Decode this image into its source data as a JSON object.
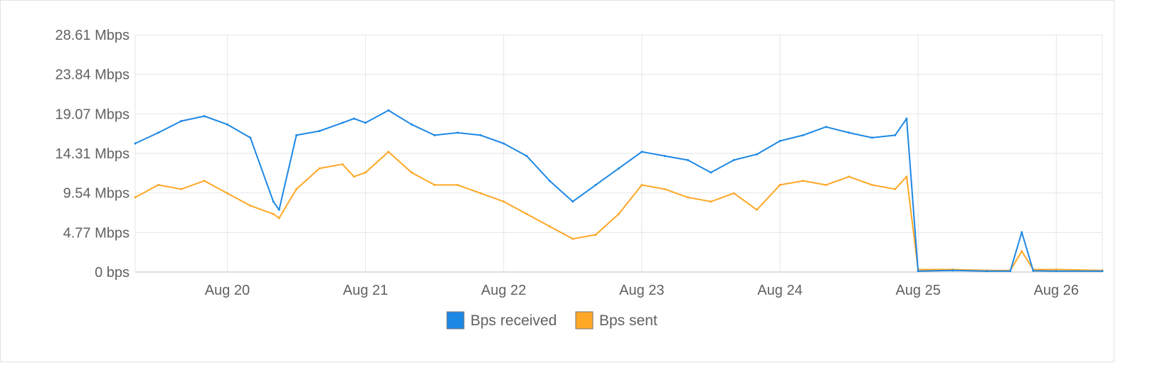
{
  "chart_data": {
    "type": "line",
    "title": "",
    "xlabel": "",
    "ylabel": "",
    "x_range": [
      "2023-08-19T08:00",
      "2023-08-26T08:00"
    ],
    "x_ticks": [
      "Aug 20",
      "Aug 21",
      "Aug 22",
      "Aug 23",
      "Aug 24",
      "Aug 25",
      "Aug 26"
    ],
    "y_ticks": [
      "0 bps",
      "4.77 Mbps",
      "9.54 Mbps",
      "14.31 Mbps",
      "19.07 Mbps",
      "23.84 Mbps",
      "28.61 Mbps"
    ],
    "y_unit": "Mbps",
    "ylim": [
      0,
      28.61
    ],
    "grid": true,
    "legend_position": "bottom",
    "series_colors": [
      "#1e88e5",
      "#ffa726"
    ],
    "series": [
      {
        "name": "Bps received",
        "x": [
          "2023-08-19T08:00",
          "2023-08-19T12:00",
          "2023-08-19T16:00",
          "2023-08-19T20:00",
          "2023-08-20T00:00",
          "2023-08-20T04:00",
          "2023-08-20T08:00",
          "2023-08-20T09:00",
          "2023-08-20T12:00",
          "2023-08-20T16:00",
          "2023-08-20T20:00",
          "2023-08-20T22:00",
          "2023-08-21T00:00",
          "2023-08-21T04:00",
          "2023-08-21T08:00",
          "2023-08-21T12:00",
          "2023-08-21T16:00",
          "2023-08-21T20:00",
          "2023-08-22T00:00",
          "2023-08-22T04:00",
          "2023-08-22T08:00",
          "2023-08-22T12:00",
          "2023-08-22T16:00",
          "2023-08-22T20:00",
          "2023-08-23T00:00",
          "2023-08-23T04:00",
          "2023-08-23T08:00",
          "2023-08-23T12:00",
          "2023-08-23T16:00",
          "2023-08-23T20:00",
          "2023-08-24T00:00",
          "2023-08-24T04:00",
          "2023-08-24T08:00",
          "2023-08-24T12:00",
          "2023-08-24T16:00",
          "2023-08-24T20:00",
          "2023-08-24T22:00",
          "2023-08-25T00:00",
          "2023-08-25T06:00",
          "2023-08-25T12:00",
          "2023-08-25T16:00",
          "2023-08-25T18:00",
          "2023-08-25T20:00",
          "2023-08-26T00:00",
          "2023-08-26T08:00"
        ],
        "values": [
          15.5,
          16.8,
          18.2,
          18.8,
          17.8,
          16.2,
          8.5,
          7.5,
          16.5,
          17.0,
          18.0,
          18.5,
          18.0,
          19.5,
          17.8,
          16.5,
          16.8,
          16.5,
          15.5,
          14.0,
          11.0,
          8.5,
          10.5,
          12.5,
          14.5,
          14.0,
          13.5,
          12.0,
          13.5,
          14.2,
          15.8,
          16.5,
          17.5,
          16.8,
          16.2,
          16.5,
          18.5,
          0.1,
          0.2,
          0.1,
          0.1,
          4.8,
          0.15,
          0.1,
          0.1
        ]
      },
      {
        "name": "Bps sent",
        "x": [
          "2023-08-19T08:00",
          "2023-08-19T12:00",
          "2023-08-19T16:00",
          "2023-08-19T20:00",
          "2023-08-20T00:00",
          "2023-08-20T04:00",
          "2023-08-20T08:00",
          "2023-08-20T09:00",
          "2023-08-20T12:00",
          "2023-08-20T16:00",
          "2023-08-20T20:00",
          "2023-08-20T22:00",
          "2023-08-21T00:00",
          "2023-08-21T04:00",
          "2023-08-21T08:00",
          "2023-08-21T12:00",
          "2023-08-21T16:00",
          "2023-08-21T20:00",
          "2023-08-22T00:00",
          "2023-08-22T04:00",
          "2023-08-22T08:00",
          "2023-08-22T12:00",
          "2023-08-22T16:00",
          "2023-08-22T20:00",
          "2023-08-23T00:00",
          "2023-08-23T04:00",
          "2023-08-23T08:00",
          "2023-08-23T12:00",
          "2023-08-23T16:00",
          "2023-08-23T20:00",
          "2023-08-24T00:00",
          "2023-08-24T04:00",
          "2023-08-24T08:00",
          "2023-08-24T12:00",
          "2023-08-24T16:00",
          "2023-08-24T20:00",
          "2023-08-24T22:00",
          "2023-08-25T00:00",
          "2023-08-25T06:00",
          "2023-08-25T12:00",
          "2023-08-25T16:00",
          "2023-08-25T18:00",
          "2023-08-25T20:00",
          "2023-08-26T00:00",
          "2023-08-26T08:00"
        ],
        "values": [
          9.0,
          10.5,
          10.0,
          11.0,
          9.5,
          8.0,
          7.0,
          6.5,
          10.0,
          12.5,
          13.0,
          11.5,
          12.0,
          14.5,
          12.0,
          10.5,
          10.5,
          9.5,
          8.5,
          7.0,
          5.5,
          4.0,
          4.5,
          7.0,
          10.5,
          10.0,
          9.0,
          8.5,
          9.5,
          7.5,
          10.5,
          11.0,
          10.5,
          11.5,
          10.5,
          10.0,
          11.5,
          0.3,
          0.3,
          0.2,
          0.2,
          2.5,
          0.3,
          0.3,
          0.2
        ]
      }
    ]
  }
}
